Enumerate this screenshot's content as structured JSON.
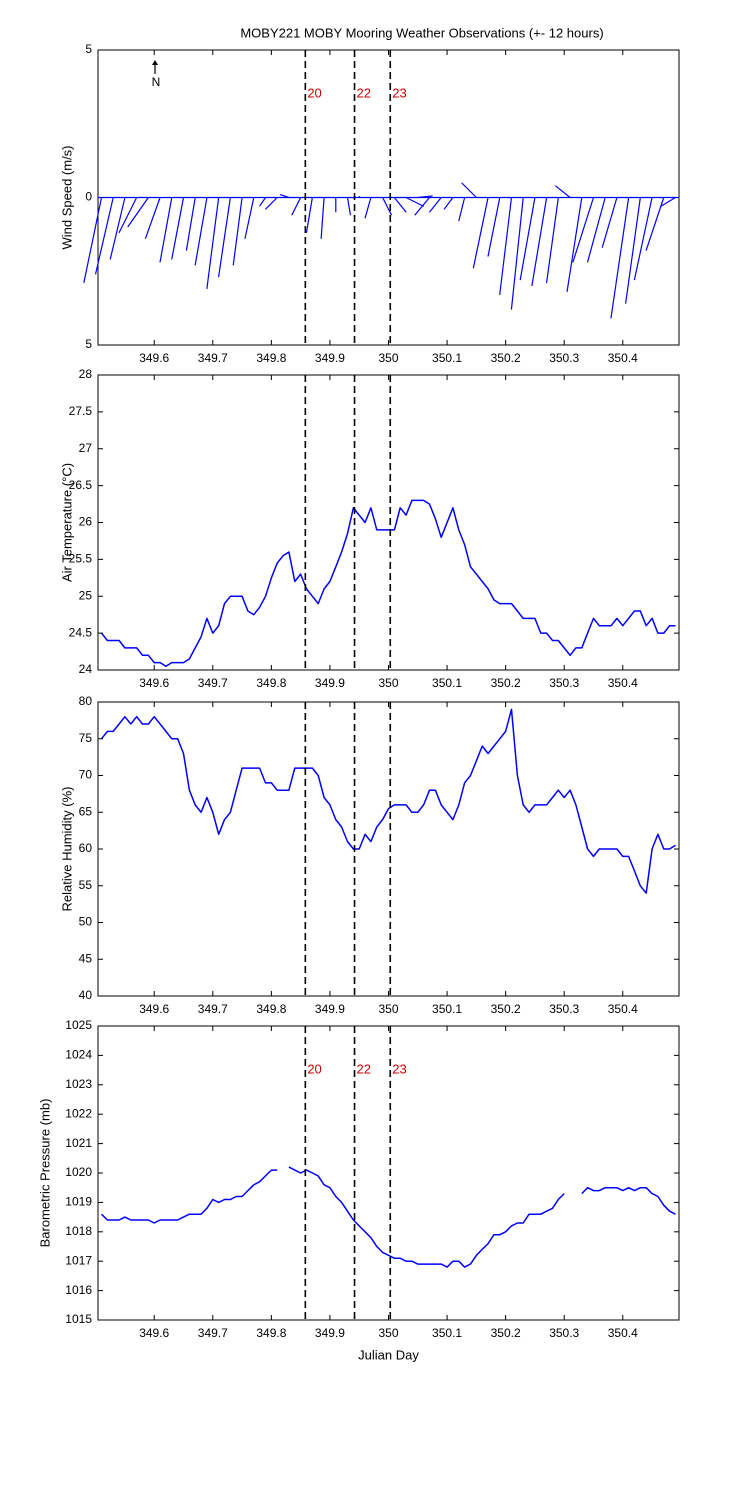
{
  "chart_data": [
    {
      "type": "stick",
      "title": "MOBY221 MOBY Mooring Weather Observations (+- 12 hours)",
      "y_label": "Wind Speed (m/s)",
      "annotation": "N",
      "color": "#0000ff",
      "x": [
        349.51,
        349.53,
        349.55,
        349.57,
        349.59,
        349.61,
        349.63,
        349.65,
        349.67,
        349.69,
        349.71,
        349.73,
        349.75,
        349.77,
        349.79,
        349.81,
        349.83,
        349.85,
        349.87,
        349.89,
        349.91,
        349.93,
        349.95,
        349.97,
        349.99,
        350.01,
        350.03,
        350.05,
        350.07,
        350.09,
        350.11,
        350.13,
        350.15,
        350.17,
        350.19,
        350.21,
        350.23,
        350.25,
        350.27,
        350.29,
        350.31,
        350.33,
        350.35,
        350.37,
        350.39,
        350.41,
        350.43,
        350.45,
        350.47,
        350.49
      ],
      "u": [
        -0.6,
        -0.6,
        -0.5,
        -0.6,
        -0.7,
        -0.5,
        -0.4,
        -0.4,
        -0.3,
        -0.4,
        -0.4,
        -0.4,
        -0.3,
        -0.3,
        -0.2,
        -0.4,
        -0.3,
        -0.3,
        -0.2,
        -0.1,
        0,
        0.1,
        0,
        -0.2,
        0.3,
        0.4,
        0.6,
        0.5,
        -0.5,
        -0.4,
        -0.3,
        -0.2,
        -0.5,
        -0.5,
        -0.4,
        -0.4,
        -0.4,
        -0.5,
        -0.5,
        -0.4,
        -0.5,
        -0.5,
        -0.7,
        -0.6,
        -0.5,
        -0.6,
        -0.5,
        -0.6,
        -0.6,
        -0.5
      ],
      "v": [
        -2.9,
        -2.6,
        -2.1,
        -1.2,
        -1.0,
        -1.4,
        -2.2,
        -2.1,
        -1.8,
        -2.3,
        -3.1,
        -2.7,
        -2.3,
        -1.4,
        -0.3,
        -0.4,
        0.1,
        -0.6,
        -1.2,
        -1.4,
        -0.5,
        -0.6,
        0.05,
        -0.7,
        -0.6,
        -0.5,
        -0.3,
        0.05,
        -0.6,
        -0.5,
        -0.4,
        -0.8,
        0.5,
        -2.4,
        -2.0,
        -3.3,
        -3.8,
        -2.8,
        -3.0,
        -2.9,
        0.4,
        -3.2,
        -2.2,
        -2.2,
        -1.7,
        -4.1,
        -3.6,
        -2.8,
        -1.8,
        -0.3
      ],
      "xlim": [
        349.504,
        350.496
      ],
      "xticks": [
        349.6,
        349.7,
        349.8,
        349.9,
        350,
        350.1,
        350.2,
        350.3,
        350.4
      ],
      "ylim": [
        -5,
        5
      ],
      "yticks": [
        {
          "value": -5,
          "label": "5"
        },
        0,
        {
          "value": 5,
          "label": "5"
        }
      ],
      "vlines": [
        349.858,
        349.942,
        350.003
      ],
      "vline_labels": [
        "20",
        "22",
        "23"
      ]
    },
    {
      "type": "line",
      "y_label": "Air Temperature (°C)",
      "color": "#0000ff",
      "x": [
        349.51,
        349.52,
        349.53,
        349.54,
        349.55,
        349.56,
        349.57,
        349.58,
        349.59,
        349.6,
        349.61,
        349.62,
        349.63,
        349.64,
        349.65,
        349.66,
        349.67,
        349.68,
        349.69,
        349.7,
        349.71,
        349.72,
        349.73,
        349.74,
        349.75,
        349.76,
        349.77,
        349.78,
        349.79,
        349.8,
        349.81,
        349.82,
        349.83,
        349.84,
        349.85,
        349.86,
        349.87,
        349.88,
        349.89,
        349.9,
        349.91,
        349.92,
        349.93,
        349.94,
        349.95,
        349.96,
        349.97,
        349.98,
        349.99,
        350,
        350.01,
        350.02,
        350.03,
        350.04,
        350.05,
        350.06,
        350.07,
        350.08,
        350.09,
        350.1,
        350.11,
        350.12,
        350.13,
        350.14,
        350.15,
        350.16,
        350.17,
        350.18,
        350.19,
        350.2,
        350.21,
        350.22,
        350.23,
        350.24,
        350.25,
        350.26,
        350.27,
        350.28,
        350.29,
        350.3,
        350.31,
        350.32,
        350.33,
        350.34,
        350.35,
        350.36,
        350.37,
        350.38,
        350.39,
        350.4,
        350.41,
        350.42,
        350.43,
        350.44,
        350.45,
        350.46,
        350.47,
        350.48,
        350.49
      ],
      "values": [
        24.5,
        24.4,
        24.4,
        24.4,
        24.3,
        24.3,
        24.3,
        24.2,
        24.2,
        24.1,
        24.1,
        24.05,
        24.1,
        24.1,
        24.1,
        24.15,
        24.3,
        24.45,
        24.7,
        24.5,
        24.6,
        24.9,
        25.0,
        25.0,
        25.0,
        24.8,
        24.75,
        24.85,
        25.0,
        25.25,
        25.45,
        25.55,
        25.6,
        25.2,
        25.3,
        25.1,
        25.0,
        24.9,
        25.1,
        25.2,
        25.4,
        25.6,
        25.85,
        26.2,
        26.1,
        26.0,
        26.2,
        25.9,
        25.9,
        25.9,
        25.9,
        26.2,
        26.1,
        26.3,
        26.3,
        26.3,
        26.25,
        26.05,
        25.8,
        26.0,
        26.2,
        25.9,
        25.7,
        25.4,
        25.3,
        25.2,
        25.1,
        24.95,
        24.9,
        24.9,
        24.9,
        24.8,
        24.7,
        24.7,
        24.7,
        24.5,
        24.5,
        24.4,
        24.4,
        24.3,
        24.2,
        24.3,
        24.3,
        24.5,
        24.7,
        24.6,
        24.6,
        24.6,
        24.7,
        24.6,
        24.7,
        24.8,
        24.8,
        24.6,
        24.7,
        24.5,
        24.5,
        24.6,
        24.6
      ],
      "xlim": [
        349.504,
        350.496
      ],
      "xticks": [
        349.6,
        349.7,
        349.8,
        349.9,
        350,
        350.1,
        350.2,
        350.3,
        350.4
      ],
      "ylim": [
        24,
        28
      ],
      "yticks": [
        24,
        24.5,
        25,
        25.5,
        26,
        26.5,
        27,
        27.5,
        28
      ],
      "vlines": [
        349.858,
        349.942,
        350.003
      ]
    },
    {
      "type": "line",
      "y_label": "Relative Humidity (%)",
      "color": "#0000ff",
      "x": [
        349.51,
        349.52,
        349.53,
        349.54,
        349.55,
        349.56,
        349.57,
        349.58,
        349.59,
        349.6,
        349.61,
        349.62,
        349.63,
        349.64,
        349.65,
        349.66,
        349.67,
        349.68,
        349.69,
        349.7,
        349.71,
        349.72,
        349.73,
        349.74,
        349.75,
        349.76,
        349.77,
        349.78,
        349.79,
        349.8,
        349.81,
        349.82,
        349.83,
        349.84,
        349.85,
        349.86,
        349.87,
        349.88,
        349.89,
        349.9,
        349.91,
        349.92,
        349.93,
        349.94,
        349.95,
        349.96,
        349.97,
        349.98,
        349.99,
        350,
        350.01,
        350.02,
        350.03,
        350.04,
        350.05,
        350.06,
        350.07,
        350.08,
        350.09,
        350.1,
        350.11,
        350.12,
        350.13,
        350.14,
        350.15,
        350.16,
        350.17,
        350.18,
        350.19,
        350.2,
        350.21,
        350.22,
        350.23,
        350.24,
        350.25,
        350.26,
        350.27,
        350.28,
        350.29,
        350.3,
        350.31,
        350.32,
        350.33,
        350.34,
        350.35,
        350.36,
        350.37,
        350.38,
        350.39,
        350.4,
        350.41,
        350.42,
        350.43,
        350.44,
        350.45,
        350.46,
        350.47,
        350.48,
        350.49
      ],
      "values": [
        75,
        76,
        76,
        77,
        78,
        77,
        78,
        77,
        77,
        78,
        77,
        76,
        75,
        75,
        73,
        68,
        66,
        65,
        67,
        65,
        62,
        64,
        65,
        68,
        71,
        71,
        71,
        71,
        69,
        69,
        68,
        68,
        68,
        71,
        71,
        71,
        71,
        70,
        67,
        66,
        64,
        63,
        61,
        60,
        60,
        62,
        61,
        63,
        64,
        65.5,
        66,
        66,
        66,
        65,
        65,
        66,
        68,
        68,
        66,
        65,
        64,
        66,
        69,
        70,
        72,
        74,
        73,
        74,
        75,
        76,
        79,
        70,
        66,
        65,
        66,
        66,
        66,
        67,
        68,
        67,
        68,
        66,
        63,
        60,
        59,
        60,
        60,
        60,
        60,
        59,
        59,
        57,
        55,
        54,
        60,
        62,
        60,
        60,
        60.5
      ],
      "xlim": [
        349.504,
        350.496
      ],
      "xticks": [
        349.6,
        349.7,
        349.8,
        349.9,
        350,
        350.1,
        350.2,
        350.3,
        350.4
      ],
      "ylim": [
        40,
        80
      ],
      "yticks": [
        40,
        45,
        50,
        55,
        60,
        65,
        70,
        75,
        80
      ],
      "vlines": [
        349.858,
        349.942,
        350.003
      ]
    },
    {
      "type": "line",
      "y_label": "Barometric Pressure (mb)",
      "x_label": "Julian Day",
      "color": "#0000ff",
      "x": [
        349.51,
        349.52,
        349.53,
        349.54,
        349.55,
        349.56,
        349.57,
        349.58,
        349.59,
        349.6,
        349.61,
        349.62,
        349.63,
        349.64,
        349.65,
        349.66,
        349.67,
        349.68,
        349.69,
        349.7,
        349.71,
        349.72,
        349.73,
        349.74,
        349.75,
        349.76,
        349.77,
        349.78,
        349.79,
        349.8,
        349.81,
        349.82,
        349.83,
        349.84,
        349.85,
        349.86,
        349.87,
        349.88,
        349.89,
        349.9,
        349.91,
        349.92,
        349.93,
        349.94,
        349.95,
        349.96,
        349.97,
        349.98,
        349.99,
        350,
        350.01,
        350.02,
        350.03,
        350.04,
        350.05,
        350.06,
        350.07,
        350.08,
        350.09,
        350.1,
        350.11,
        350.12,
        350.13,
        350.14,
        350.15,
        350.16,
        350.17,
        350.18,
        350.19,
        350.2,
        350.21,
        350.22,
        350.23,
        350.24,
        350.25,
        350.26,
        350.27,
        350.28,
        350.29,
        350.3,
        350.31,
        350.32,
        350.33,
        350.34,
        350.35,
        350.36,
        350.37,
        350.38,
        350.39,
        350.4,
        350.41,
        350.42,
        350.43,
        350.44,
        350.45,
        350.46,
        350.47,
        350.48,
        350.49
      ],
      "values": [
        1018.6,
        1018.4,
        1018.4,
        1018.4,
        1018.5,
        1018.4,
        1018.4,
        1018.4,
        1018.4,
        1018.3,
        1018.4,
        1018.4,
        1018.4,
        1018.4,
        1018.5,
        1018.6,
        1018.6,
        1018.6,
        1018.8,
        1019.1,
        1019.0,
        1019.1,
        1019.1,
        1019.2,
        1019.2,
        1019.4,
        1019.6,
        1019.7,
        1019.9,
        1020.1,
        1020.1,
        null,
        1020.2,
        1020.1,
        1020.0,
        1020.1,
        1020.0,
        1019.9,
        1019.6,
        1019.5,
        1019.2,
        1019.0,
        1018.7,
        1018.4,
        1018.2,
        1018.0,
        1017.8,
        1017.5,
        1017.3,
        1017.2,
        1017.1,
        1017.1,
        1017.0,
        1017.0,
        1016.9,
        1016.9,
        1016.9,
        1016.9,
        1016.9,
        1016.8,
        1017.0,
        1017.0,
        1016.8,
        1016.9,
        1017.2,
        1017.4,
        1017.6,
        1017.9,
        1017.9,
        1018.0,
        1018.2,
        1018.3,
        1018.3,
        1018.6,
        1018.6,
        1018.6,
        1018.7,
        1018.8,
        1019.1,
        1019.3,
        null,
        null,
        1019.3,
        1019.5,
        1019.4,
        1019.4,
        1019.5,
        1019.5,
        1019.5,
        1019.4,
        1019.5,
        1019.4,
        1019.5,
        1019.5,
        1019.3,
        1019.2,
        1018.9,
        1018.7,
        1018.6
      ],
      "xlim": [
        349.504,
        350.496
      ],
      "xticks": [
        349.6,
        349.7,
        349.8,
        349.9,
        350,
        350.1,
        350.2,
        350.3,
        350.4
      ],
      "ylim": [
        1015,
        1025
      ],
      "yticks": [
        1015,
        1016,
        1017,
        1018,
        1019,
        1020,
        1021,
        1022,
        1023,
        1024,
        1025
      ],
      "vlines": [
        349.858,
        349.942,
        350.003
      ],
      "vline_labels": [
        "20",
        "22",
        "23"
      ]
    }
  ]
}
